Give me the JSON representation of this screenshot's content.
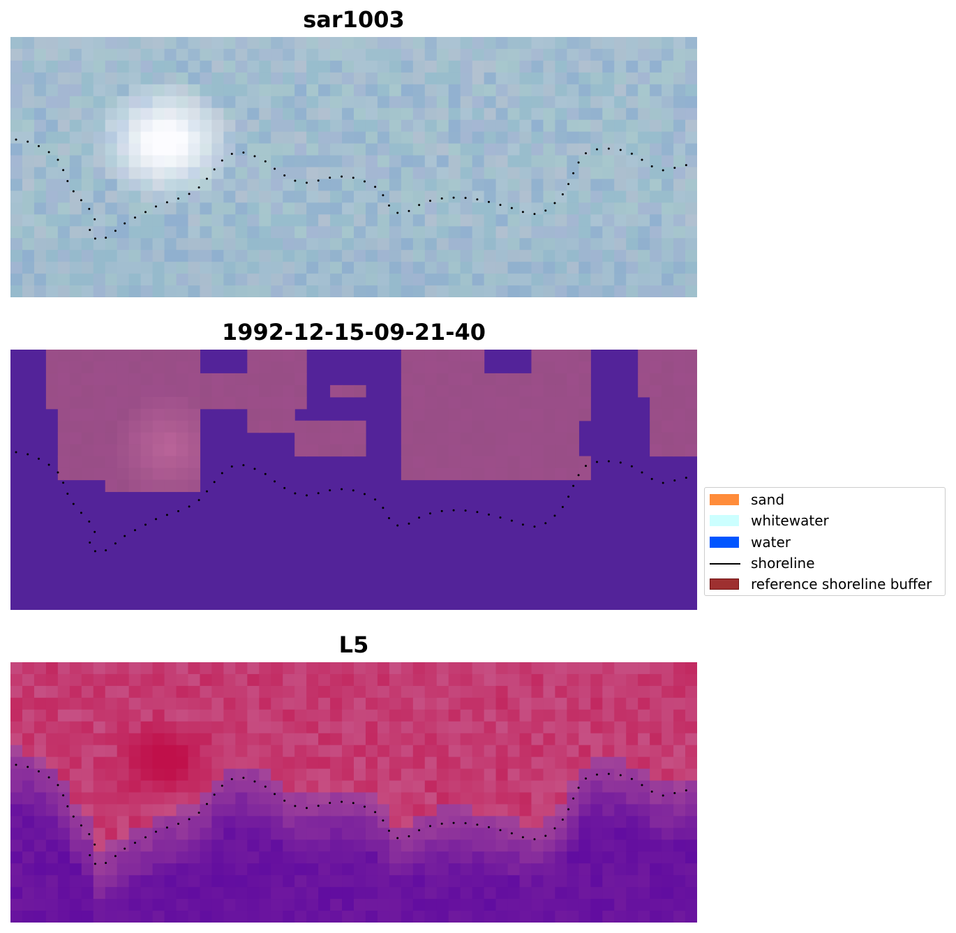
{
  "panels": [
    {
      "id": "rgb",
      "title": "sar1003",
      "kind": "rgb"
    },
    {
      "id": "classified",
      "title": "1992-12-15-09-21-40",
      "kind": "classified"
    },
    {
      "id": "index",
      "title": "L5",
      "kind": "index"
    }
  ],
  "legend": {
    "items": [
      {
        "label": "sand",
        "type": "patch",
        "color": "#ff8c3a",
        "border": "#ff8c3a"
      },
      {
        "label": "whitewater",
        "type": "patch",
        "color": "#ccffff",
        "border": "#ccffff"
      },
      {
        "label": "water",
        "type": "patch",
        "color": "#0055ff",
        "border": "#0055ff"
      },
      {
        "label": "shoreline",
        "type": "line",
        "color": "#000000"
      },
      {
        "label": "reference shoreline buffer",
        "type": "patch",
        "color": "#9e3030",
        "border": "#6e1010"
      }
    ]
  },
  "colors": {
    "classified_water": "#532399",
    "classified_land": "#984e86",
    "rgb_base": "#9bbccc",
    "index_high": "#c0104a",
    "index_low": "#5e0aa0",
    "shoreline_dots": "#000000"
  }
}
